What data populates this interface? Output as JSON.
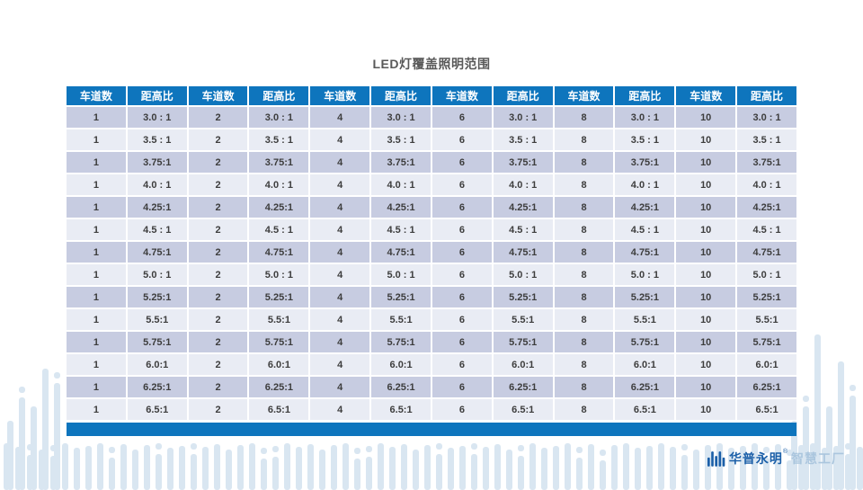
{
  "page": {
    "title": "LED灯覆盖照明范围"
  },
  "table": {
    "column_headers": {
      "lanes": "车道数",
      "ratio": "距高比"
    },
    "lane_counts": [
      "1",
      "2",
      "4",
      "6",
      "8",
      "10"
    ],
    "ratio_rows": [
      "3.0 : 1",
      "3.5 : 1",
      "3.75:1",
      "4.0 : 1",
      "4.25:1",
      "4.5 : 1",
      "4.75:1",
      "5.0 : 1",
      "5.25:1",
      "5.5:1",
      "5.75:1",
      "6.0:1",
      "6.25:1",
      "6.5:1"
    ]
  },
  "footer": {
    "brand": "华普永明",
    "trademark": "®",
    "brand_suffix": "智慧工厂"
  },
  "colors": {
    "header_blue": "#0e75bd",
    "row_dark": "#c7cce1",
    "row_light": "#e9ecf4",
    "accent_bar_blue": "#0e75bd",
    "decor_bar_blue": "#d9e6f1",
    "title_gray": "#595959",
    "brand_blue": "#1b5fa8",
    "brand_suffix_blue": "#abc6de"
  }
}
